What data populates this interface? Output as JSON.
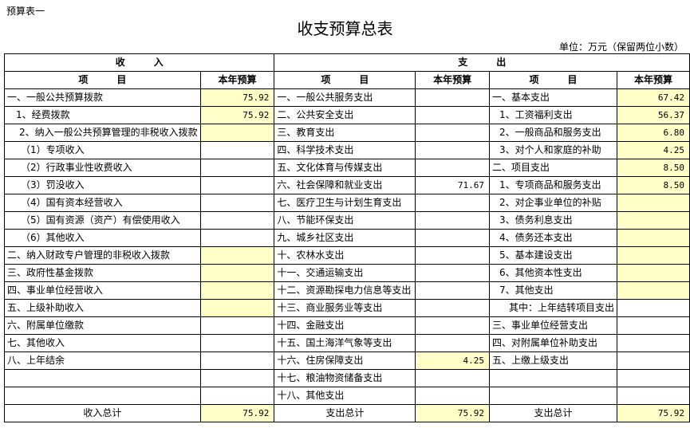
{
  "header": {
    "label": "预算表一",
    "title": "收支预算总表",
    "unit": "单位：万元（保留两位小数）"
  },
  "table": {
    "group_headers": [
      "收　　　入",
      "支　　　出"
    ],
    "column_headers": [
      "项　　　目",
      "本年预算",
      "项　　　目",
      "本年预算",
      "项　　　目",
      "本年预算"
    ],
    "rows": [
      [
        "一、一般公共预算拨款",
        "75.92",
        "一、一般公共服务支出",
        null,
        "一、基本支出",
        "67.42"
      ],
      [
        "1、经费拨款",
        "75.92",
        "二、公共安全支出",
        null,
        "1、工资福利支出",
        "56.37"
      ],
      [
        "2、纳入一般公共预算管理的非税收入拨款",
        null,
        "三、教育支出",
        null,
        "2、一般商品和服务支出",
        "6.80"
      ],
      [
        "（1）专项收入",
        null,
        "四、科学技术支出",
        null,
        "3、对个人和家庭的补助",
        "4.25"
      ],
      [
        "（2）行政事业性收费收入",
        null,
        "五、文化体育与传媒支出",
        null,
        "二、项目支出",
        "8.50"
      ],
      [
        "（3）罚没收入",
        null,
        "六、社会保障和就业支出",
        "71.67",
        "1、专项商品和服务支出",
        "8.50"
      ],
      [
        "（4）国有资本经营收入",
        null,
        "七、医疗卫生与计划生育支出",
        null,
        "2、对企事业单位的补贴",
        null
      ],
      [
        "（5）国有资源（资产）有偿使用收入",
        null,
        "八、节能环保支出",
        null,
        "3、债务利息支出",
        null
      ],
      [
        "（6）其他收入",
        null,
        "九、城乡社区支出",
        null,
        "4、债务还本支出",
        null
      ],
      [
        "二、纳入财政专户管理的非税收入拨款",
        null,
        "十、农林水支出",
        null,
        "5、基本建设支出",
        null
      ],
      [
        "三、政府性基金拨款",
        null,
        "十一、交通运输支出",
        null,
        "6、其他资本性支出",
        null
      ],
      [
        "四、事业单位经营收入",
        null,
        "十二、资源勘探电力信息等支出",
        null,
        "7、其他支出",
        null
      ],
      [
        "五、上级补助收入",
        null,
        "十三、商业服务业等支出",
        null,
        "其中：上年结转项目支出",
        null
      ],
      [
        "六、附属单位缴款",
        null,
        "十四、金融支出",
        null,
        "三、事业单位经营支出",
        null
      ],
      [
        "七、其他收入",
        null,
        "十五、国土海洋气象等支出",
        null,
        "四、对附属单位补助支出",
        null
      ],
      [
        "八、上年结余",
        null,
        "十六、住房保障支出",
        "4.25",
        "五、上缴上级支出",
        null
      ],
      [
        null,
        null,
        "十七、粮油物资储备支出",
        null,
        null,
        null
      ],
      [
        null,
        null,
        "十八、其他支出",
        null,
        null,
        null
      ]
    ],
    "totals": [
      "收入总计",
      "75.92",
      "支出总计",
      "75.92",
      "支出总计",
      "75.92"
    ]
  }
}
